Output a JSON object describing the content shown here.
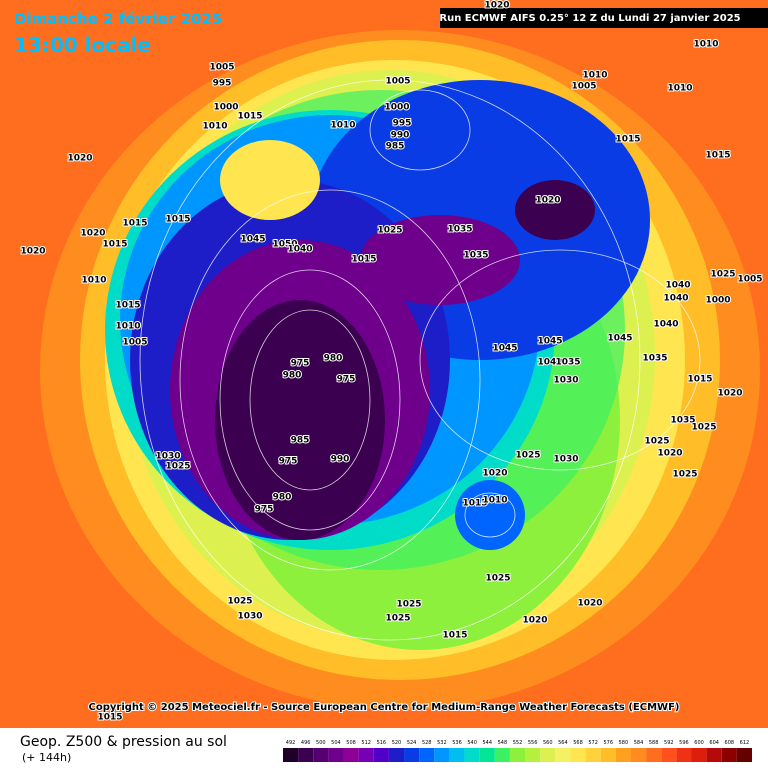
{
  "header": {
    "date": "Dimanche 2 février 2025",
    "time": "13:00 locale",
    "run": "Run ECMWF AIFS 0.25° 12 Z du Lundi 27 janvier 2025"
  },
  "map": {
    "copyright": "Copyright © 2025 Meteociel.fr - Source European Centre for Medium-Range Weather Forecasts (ECMWF)",
    "pressure_labels": [
      "1005",
      "995",
      "1000",
      "1015",
      "1010",
      "1020",
      "1010",
      "1005",
      "1000",
      "995",
      "990",
      "985",
      "1010",
      "1005",
      "1010",
      "1010",
      "1020",
      "1015",
      "1015",
      "1020",
      "1015",
      "1015",
      "1045",
      "1050",
      "1040",
      "1025",
      "1035",
      "1035",
      "1015",
      "1020",
      "1020",
      "1015",
      "1010",
      "1015",
      "1010",
      "1005",
      "975",
      "980",
      "975",
      "980",
      "985",
      "975",
      "990",
      "980",
      "975",
      "1030",
      "1025",
      "1045",
      "1045",
      "1040",
      "1035",
      "1030",
      "1045",
      "1040",
      "1040",
      "1000",
      "1040",
      "1025",
      "1005",
      "1035",
      "1015",
      "1020",
      "1035",
      "1025",
      "1025",
      "1020",
      "1025",
      "1025",
      "1030",
      "1020",
      "1015",
      "1010",
      "1025",
      "1025",
      "1025",
      "1020",
      "1020",
      "1015",
      "1025",
      "1030",
      "1015"
    ]
  },
  "footer": {
    "title": "Geop. Z500 & pression au sol",
    "lead": "(+ 144h)"
  },
  "colorbar": {
    "values": [
      492,
      496,
      500,
      504,
      508,
      512,
      516,
      520,
      524,
      528,
      532,
      536,
      540,
      544,
      548,
      552,
      556,
      560,
      564,
      568,
      572,
      576,
      580,
      584,
      588,
      592,
      596,
      600,
      604,
      608,
      612
    ],
    "colors": [
      "#1e0028",
      "#3c0050",
      "#550070",
      "#6e008c",
      "#8c0096",
      "#7800b4",
      "#5000c8",
      "#1e1ec8",
      "#0a3ce6",
      "#0064ff",
      "#0096ff",
      "#00bef0",
      "#00dcc8",
      "#00e696",
      "#3cf064",
      "#8cf03c",
      "#b4f03c",
      "#dcf050",
      "#f5f064",
      "#ffe650",
      "#ffd23c",
      "#ffbe28",
      "#ffa01e",
      "#ff8c1e",
      "#ff6e1e",
      "#ff501e",
      "#f03214",
      "#dc1e0a",
      "#b40a0a",
      "#8c0000",
      "#640000"
    ]
  }
}
